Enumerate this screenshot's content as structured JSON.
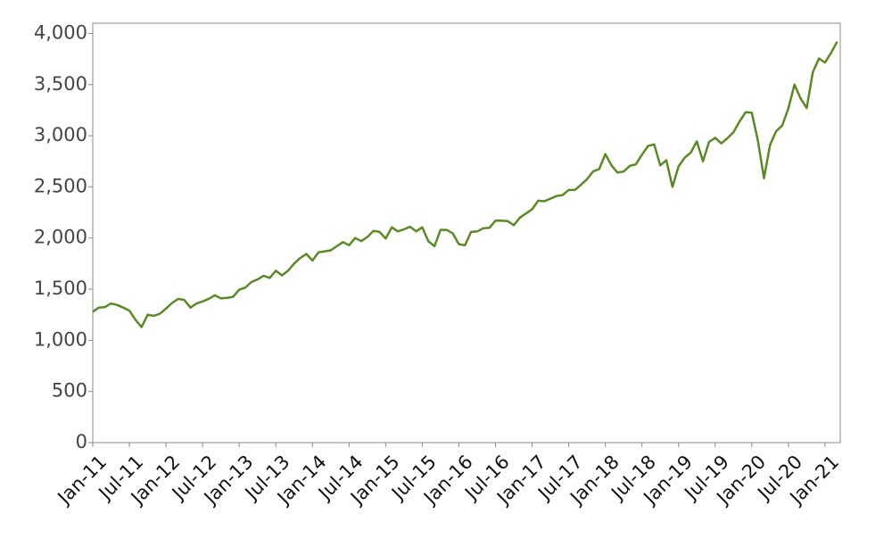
{
  "chart_data": {
    "type": "line",
    "x": [
      "Jan-11",
      "Feb-11",
      "Mar-11",
      "Apr-11",
      "May-11",
      "Jun-11",
      "Jul-11",
      "Aug-11",
      "Sep-11",
      "Oct-11",
      "Nov-11",
      "Dec-11",
      "Jan-12",
      "Feb-12",
      "Mar-12",
      "Apr-12",
      "May-12",
      "Jun-12",
      "Jul-12",
      "Aug-12",
      "Sep-12",
      "Oct-12",
      "Nov-12",
      "Dec-12",
      "Jan-13",
      "Feb-13",
      "Mar-13",
      "Apr-13",
      "May-13",
      "Jun-13",
      "Jul-13",
      "Aug-13",
      "Sep-13",
      "Oct-13",
      "Nov-13",
      "Dec-13",
      "Jan-14",
      "Feb-14",
      "Mar-14",
      "Apr-14",
      "May-14",
      "Jun-14",
      "Jul-14",
      "Aug-14",
      "Sep-14",
      "Oct-14",
      "Nov-14",
      "Dec-14",
      "Jan-15",
      "Feb-15",
      "Mar-15",
      "Apr-15",
      "May-15",
      "Jun-15",
      "Jul-15",
      "Aug-15",
      "Sep-15",
      "Oct-15",
      "Nov-15",
      "Dec-15",
      "Jan-16",
      "Feb-16",
      "Mar-16",
      "Apr-16",
      "May-16",
      "Jun-16",
      "Jul-16",
      "Aug-16",
      "Sep-16",
      "Oct-16",
      "Nov-16",
      "Dec-16",
      "Jan-17",
      "Feb-17",
      "Mar-17",
      "Apr-17",
      "May-17",
      "Jun-17",
      "Jul-17",
      "Aug-17",
      "Sep-17",
      "Oct-17",
      "Nov-17",
      "Dec-17",
      "Jan-18",
      "Feb-18",
      "Mar-18",
      "Apr-18",
      "May-18",
      "Jun-18",
      "Jul-18",
      "Aug-18",
      "Sep-18",
      "Oct-18",
      "Nov-18",
      "Dec-18",
      "Jan-19",
      "Feb-19",
      "Mar-19",
      "Apr-19",
      "May-19",
      "Jun-19",
      "Jul-19",
      "Aug-19",
      "Sep-19",
      "Oct-19",
      "Nov-19",
      "Dec-19",
      "Jan-20",
      "Feb-20",
      "Mar-20",
      "Apr-20",
      "May-20",
      "Jun-20",
      "Jul-20",
      "Aug-20",
      "Sep-20",
      "Oct-20",
      "Nov-20",
      "Dec-20",
      "Jan-21",
      "Feb-21",
      "Mar-21"
    ],
    "series": [
      {
        "color": "#5a8a23",
        "values": [
          1280,
          1320,
          1325,
          1360,
          1345,
          1320,
          1290,
          1200,
          1130,
          1250,
          1240,
          1260,
          1310,
          1365,
          1405,
          1395,
          1320,
          1360,
          1380,
          1405,
          1440,
          1410,
          1415,
          1425,
          1495,
          1515,
          1570,
          1595,
          1630,
          1610,
          1680,
          1635,
          1680,
          1750,
          1805,
          1845,
          1780,
          1860,
          1870,
          1880,
          1920,
          1960,
          1930,
          2000,
          1970,
          2010,
          2070,
          2060,
          1995,
          2105,
          2065,
          2085,
          2110,
          2065,
          2105,
          1970,
          1920,
          2080,
          2080,
          2045,
          1940,
          1930,
          2060,
          2065,
          2095,
          2100,
          2170,
          2170,
          2165,
          2125,
          2200,
          2240,
          2280,
          2365,
          2360,
          2385,
          2410,
          2420,
          2470,
          2470,
          2520,
          2575,
          2650,
          2675,
          2820,
          2710,
          2640,
          2650,
          2705,
          2720,
          2815,
          2900,
          2915,
          2710,
          2760,
          2500,
          2700,
          2785,
          2835,
          2945,
          2750,
          2940,
          2980,
          2925,
          2975,
          3035,
          3140,
          3230,
          3225,
          2955,
          2585,
          2910,
          3045,
          3100,
          3270,
          3500,
          3365,
          3270,
          3620,
          3755,
          3715,
          3810,
          3920
        ]
      }
    ],
    "xticks": [
      "Jan-11",
      "Jul-11",
      "Jan-12",
      "Jul-12",
      "Jan-13",
      "Jul-13",
      "Jan-14",
      "Jul-14",
      "Jan-15",
      "Jul-15",
      "Jan-16",
      "Jul-16",
      "Jan-17",
      "Jul-17",
      "Jan-18",
      "Jul-18",
      "Jan-19",
      "Jul-19",
      "Jan-20",
      "Jul-20",
      "Jan-21"
    ],
    "ylim": [
      0,
      4100
    ],
    "yticks": [
      0,
      500,
      {
        "value": 1000,
        "label": "1,000"
      },
      {
        "value": 1500,
        "label": "1,500"
      },
      {
        "value": 2000,
        "label": "2,000"
      },
      {
        "value": 2500,
        "label": "2,500"
      },
      {
        "value": 3000,
        "label": "3,000"
      },
      {
        "value": 3500,
        "label": "3,500"
      },
      {
        "value": 4000,
        "label": "4,000"
      }
    ],
    "grid": false
  }
}
